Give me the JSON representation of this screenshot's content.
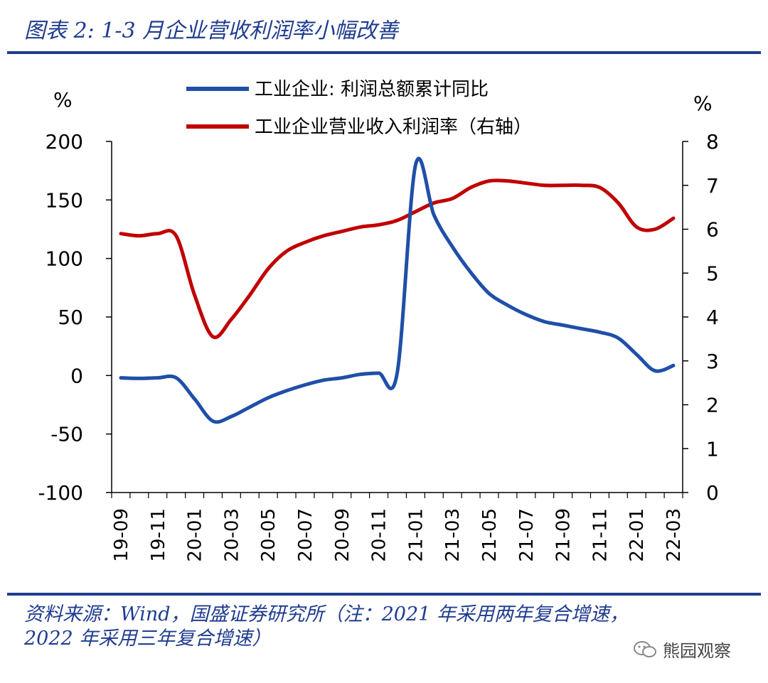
{
  "header": {
    "title": "图表 2:  1-3 月企业营收利润率小幅改善"
  },
  "footer": {
    "source_line1": "资料来源：Wind，国盛证券研究所（注：2021 年采用两年复合增速，",
    "source_line2": "2022 年采用三年复合增速）",
    "watermark": "熊园观察"
  },
  "colors": {
    "accent": "#1f3c8f",
    "series_blue": "#1f4fa8",
    "series_red": "#c00000"
  },
  "chart_data": {
    "type": "line",
    "y_left_unit": "%",
    "y_right_unit": "%",
    "ylim_left": [
      -100,
      200
    ],
    "yticks_left": [
      "200",
      "150",
      "100",
      "50",
      "0",
      "-50",
      "-100"
    ],
    "ylim_right": [
      0,
      8
    ],
    "yticks_right": [
      "8",
      "7",
      "6",
      "5",
      "4",
      "3",
      "2",
      "1",
      "0"
    ],
    "x": [
      "19-09",
      "19-10",
      "19-11",
      "19-12",
      "20-01",
      "20-02",
      "20-03",
      "20-04",
      "20-05",
      "20-06",
      "20-07",
      "20-08",
      "20-09",
      "20-10",
      "20-11",
      "20-12",
      "21-01",
      "21-02",
      "21-03",
      "21-04",
      "21-05",
      "21-06",
      "21-07",
      "21-08",
      "21-09",
      "21-10",
      "21-11",
      "21-12",
      "22-01",
      "22-02",
      "22-03"
    ],
    "x_tick_labels": [
      "19-09",
      "19-11",
      "20-01",
      "20-03",
      "20-05",
      "20-07",
      "20-09",
      "20-11",
      "21-01",
      "21-03",
      "21-05",
      "21-07",
      "21-09",
      "21-11",
      "22-01",
      "22-03"
    ],
    "series": [
      {
        "name": "工业企业: 利润总额累计同比",
        "axis": "left",
        "color": "#1f4fa8",
        "values": [
          -2,
          -2.5,
          -2,
          -2,
          -20,
          -39,
          -35,
          -27,
          -19,
          -13,
          -8,
          -4,
          -2,
          1,
          2,
          2,
          180,
          137,
          110,
          88,
          70,
          60,
          52,
          46,
          43,
          40,
          37,
          32,
          18,
          4,
          8.5
        ]
      },
      {
        "name": "工业企业营业收入利润率（右轴）",
        "axis": "right",
        "color": "#c00000",
        "values": [
          5.9,
          5.85,
          5.9,
          5.85,
          4.5,
          3.55,
          3.95,
          4.5,
          5.1,
          5.5,
          5.7,
          5.85,
          5.95,
          6.05,
          6.1,
          6.2,
          6.4,
          6.6,
          6.7,
          6.95,
          7.1,
          7.1,
          7.05,
          7.0,
          7.0,
          7.0,
          6.95,
          6.6,
          6.05,
          6.0,
          6.25
        ]
      }
    ]
  }
}
